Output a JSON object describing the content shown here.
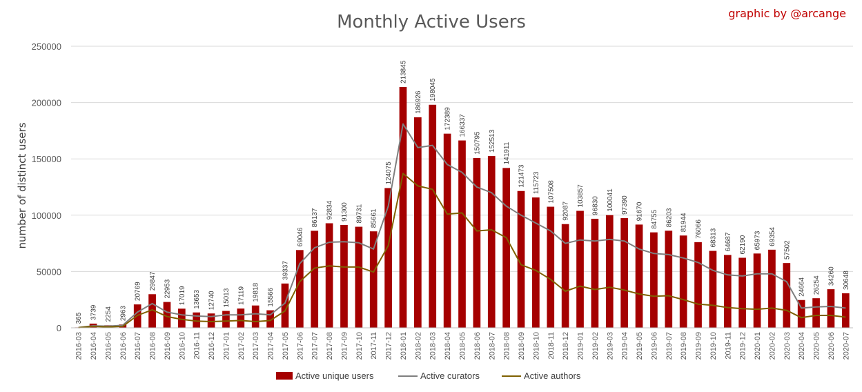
{
  "chart_data": {
    "type": "bar",
    "title": "Monthly Active Users",
    "credit": "graphic by @arcange",
    "xlabel": "",
    "ylabel": "number of distinct users",
    "ylim": [
      0,
      250000
    ],
    "yticks": [
      0,
      50000,
      100000,
      150000,
      200000,
      250000
    ],
    "grid": true,
    "legend_position": "bottom",
    "categories": [
      "2016-03",
      "2016-04",
      "2016-05",
      "2016-06",
      "2016-07",
      "2016-08",
      "2016-09",
      "2016-10",
      "2016-11",
      "2016-12",
      "2017-01",
      "2017-02",
      "2017-03",
      "2017-04",
      "2017-05",
      "2017-06",
      "2017-07",
      "2017-08",
      "2017-09",
      "2017-10",
      "2017-11",
      "2017-12",
      "2018-01",
      "2018-02",
      "2018-03",
      "2018-04",
      "2018-05",
      "2018-06",
      "2018-07",
      "2018-08",
      "2018-09",
      "2018-10",
      "2018-11",
      "2018-12",
      "2019-01",
      "2019-02",
      "2019-03",
      "2019-04",
      "2019-05",
      "2019-06",
      "2019-07",
      "2019-08",
      "2019-09",
      "2019-10",
      "2019-11",
      "2019-12",
      "2020-01",
      "2020-02",
      "2020-03",
      "2020-04",
      "2020-05",
      "2020-06",
      "2020-07"
    ],
    "series": [
      {
        "name": "Active unique users",
        "kind": "bar",
        "color": "#a50000",
        "values": [
          365,
          3739,
          2254,
          2963,
          20769,
          29847,
          22953,
          17019,
          13653,
          12740,
          15013,
          17119,
          19818,
          15566,
          39337,
          69046,
          86137,
          92834,
          91300,
          89731,
          85661,
          124075,
          213845,
          186926,
          198045,
          172389,
          166337,
          150795,
          152513,
          141911,
          121473,
          115723,
          107508,
          92087,
          103857,
          96830,
          100041,
          97390,
          91670,
          84755,
          86203,
          81944,
          76066,
          68313,
          64687,
          62190,
          65973,
          69354,
          57502,
          24664,
          26254,
          34260,
          30648
        ]
      },
      {
        "name": "Active curators",
        "kind": "line",
        "color": "#7f7f7f",
        "values": [
          300,
          1800,
          1500,
          2200,
          14000,
          21500,
          14000,
          11500,
          10500,
          10000,
          11500,
          11500,
          12500,
          11500,
          22000,
          57000,
          71000,
          76000,
          76500,
          75500,
          70000,
          108000,
          181000,
          160000,
          162000,
          145000,
          138000,
          125000,
          120000,
          108000,
          100000,
          93000,
          86000,
          75000,
          78000,
          77000,
          78500,
          77000,
          70000,
          66000,
          65000,
          62000,
          58000,
          51000,
          47000,
          46000,
          48000,
          48000,
          41000,
          17500,
          18500,
          19000,
          17500
        ]
      },
      {
        "name": "Active authors",
        "kind": "line",
        "color": "#7f6000",
        "values": [
          200,
          1200,
          800,
          1300,
          11000,
          16000,
          10000,
          7500,
          6000,
          5500,
          6000,
          6500,
          5500,
          6500,
          15000,
          41000,
          53000,
          55000,
          54000,
          54000,
          49500,
          73000,
          137000,
          126000,
          123000,
          101000,
          102000,
          86000,
          87000,
          80000,
          56000,
          51000,
          43000,
          32500,
          37000,
          34000,
          36000,
          33500,
          30000,
          28000,
          28500,
          25000,
          21000,
          20000,
          18000,
          17000,
          16500,
          17500,
          15500,
          9000,
          11000,
          11000,
          9500
        ]
      }
    ]
  }
}
